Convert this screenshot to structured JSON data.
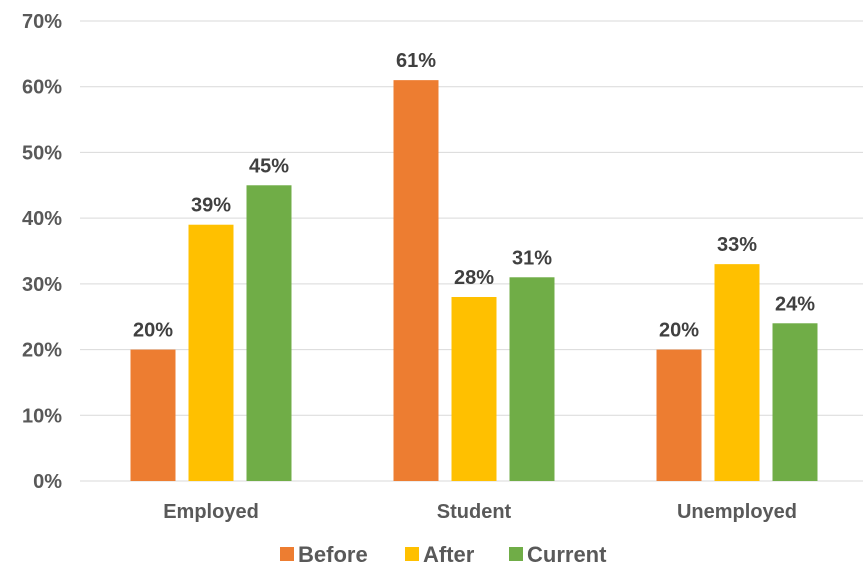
{
  "chart_data": {
    "type": "bar",
    "categories": [
      "Employed",
      "Student",
      "Unemployed"
    ],
    "series": [
      {
        "name": "Before",
        "values": [
          20,
          61,
          20
        ],
        "labels": [
          "20%",
          "61%",
          "20%"
        ],
        "color": "#ED7D31"
      },
      {
        "name": "After",
        "values": [
          39,
          28,
          33
        ],
        "labels": [
          "39%",
          "28%",
          "33%"
        ],
        "color": "#FFC000"
      },
      {
        "name": "Current",
        "values": [
          45,
          31,
          24
        ],
        "labels": [
          "45%",
          "31%",
          "24%"
        ],
        "color": "#70AD47"
      }
    ],
    "ylim": [
      0,
      70
    ],
    "yticks": [
      0,
      10,
      20,
      30,
      40,
      50,
      60,
      70
    ],
    "ytick_labels": [
      "0%",
      "10%",
      "20%",
      "30%",
      "40%",
      "50%",
      "60%",
      "70%"
    ],
    "grid": true,
    "legend_position": "bottom",
    "title": "",
    "xlabel": "",
    "ylabel": ""
  }
}
